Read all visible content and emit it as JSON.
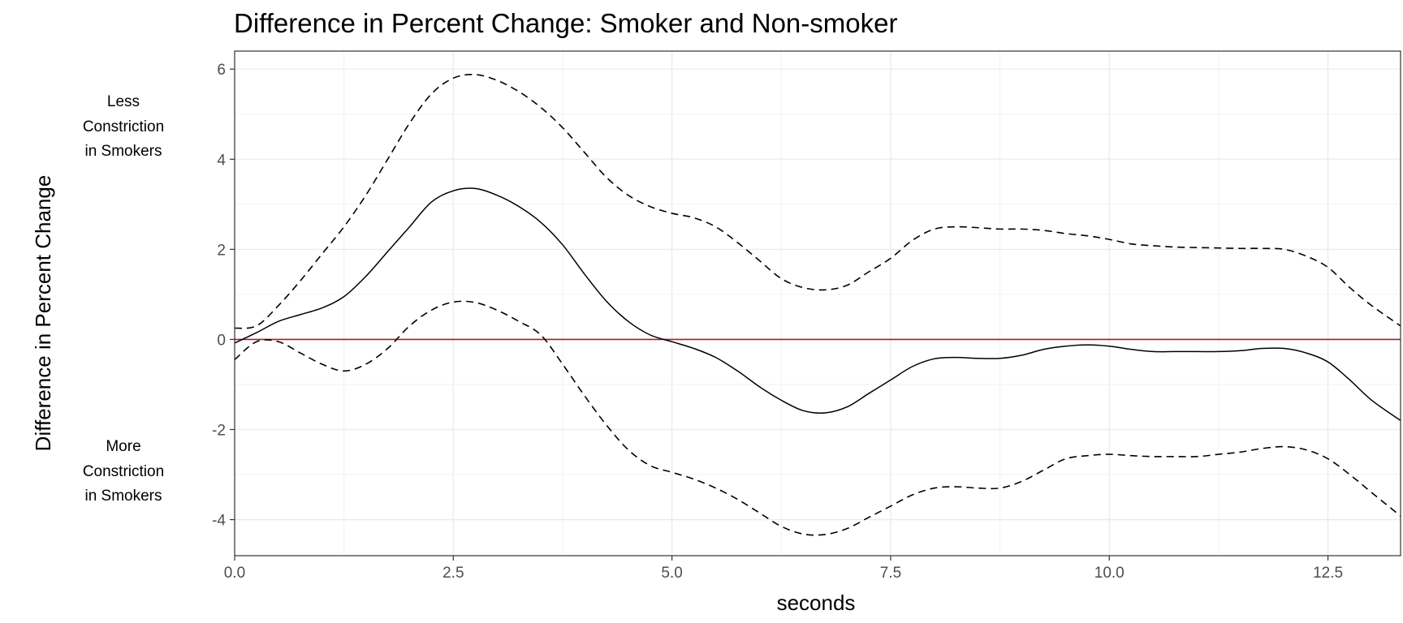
{
  "chart_data": {
    "type": "line",
    "title": "Difference in Percent Change: Smoker and Non-smoker",
    "xlabel": "seconds",
    "ylabel": "Difference in Percent Change",
    "xlim": [
      0,
      13.33
    ],
    "ylim": [
      -4.8,
      6.4
    ],
    "xticks": [
      0,
      2.5,
      5,
      7.5,
      10,
      12.5
    ],
    "xtick_labels": [
      "0.0",
      "2.5",
      "5.0",
      "7.5",
      "10.0",
      "12.5"
    ],
    "yticks": [
      -4,
      -2,
      0,
      2,
      4,
      6
    ],
    "ytick_labels": [
      "-4",
      "-2",
      "0",
      "2",
      "4",
      "6"
    ],
    "grid": true,
    "annotations": {
      "upper": [
        "Less",
        "Constriction",
        "in Smokers"
      ],
      "lower": [
        "More",
        "Constriction",
        "in Smokers"
      ]
    },
    "reference_line": {
      "y": 0,
      "color": "#b2182b"
    },
    "x": [
      0,
      0.25,
      0.5,
      0.75,
      1.0,
      1.25,
      1.5,
      1.75,
      2.0,
      2.25,
      2.5,
      2.75,
      3.0,
      3.25,
      3.5,
      3.75,
      4.0,
      4.25,
      4.5,
      4.75,
      5.0,
      5.25,
      5.5,
      5.75,
      6.0,
      6.25,
      6.5,
      6.75,
      7.0,
      7.25,
      7.5,
      7.75,
      8.0,
      8.25,
      8.5,
      8.75,
      9.0,
      9.25,
      9.5,
      9.75,
      10.0,
      10.25,
      10.5,
      10.75,
      11.0,
      11.25,
      11.5,
      11.75,
      12.0,
      12.25,
      12.5,
      12.75,
      13.0,
      13.33
    ],
    "series": [
      {
        "style": "solid",
        "color": "#000000",
        "values": [
          -0.08,
          0.15,
          0.4,
          0.55,
          0.7,
          0.95,
          1.4,
          1.95,
          2.5,
          3.05,
          3.3,
          3.35,
          3.2,
          2.95,
          2.6,
          2.1,
          1.45,
          0.85,
          0.4,
          0.1,
          -0.05,
          -0.2,
          -0.4,
          -0.7,
          -1.05,
          -1.35,
          -1.58,
          -1.63,
          -1.5,
          -1.2,
          -0.9,
          -0.6,
          -0.43,
          -0.4,
          -0.42,
          -0.42,
          -0.35,
          -0.22,
          -0.15,
          -0.12,
          -0.15,
          -0.22,
          -0.27,
          -0.27,
          -0.27,
          -0.27,
          -0.25,
          -0.2,
          -0.2,
          -0.3,
          -0.5,
          -0.9,
          -1.35,
          -1.8
        ]
      },
      {
        "style": "dashed",
        "color": "#000000",
        "values": [
          0.25,
          0.3,
          0.75,
          1.3,
          1.9,
          2.5,
          3.2,
          4.0,
          4.8,
          5.45,
          5.8,
          5.88,
          5.75,
          5.5,
          5.15,
          4.7,
          4.15,
          3.6,
          3.2,
          2.95,
          2.8,
          2.7,
          2.5,
          2.15,
          1.75,
          1.35,
          1.15,
          1.1,
          1.2,
          1.5,
          1.8,
          2.2,
          2.45,
          2.5,
          2.48,
          2.45,
          2.45,
          2.42,
          2.35,
          2.3,
          2.22,
          2.12,
          2.08,
          2.05,
          2.04,
          2.03,
          2.02,
          2.02,
          2.0,
          1.85,
          1.6,
          1.15,
          0.75,
          0.3
        ]
      },
      {
        "style": "dashed",
        "color": "#000000",
        "values": [
          -0.45,
          -0.05,
          -0.05,
          -0.3,
          -0.55,
          -0.7,
          -0.55,
          -0.2,
          0.3,
          0.65,
          0.83,
          0.82,
          0.65,
          0.4,
          0.1,
          -0.55,
          -1.25,
          -1.9,
          -2.45,
          -2.8,
          -2.95,
          -3.1,
          -3.3,
          -3.55,
          -3.85,
          -4.15,
          -4.32,
          -4.33,
          -4.2,
          -3.95,
          -3.7,
          -3.45,
          -3.3,
          -3.27,
          -3.3,
          -3.3,
          -3.15,
          -2.9,
          -2.65,
          -2.58,
          -2.55,
          -2.58,
          -2.6,
          -2.6,
          -2.6,
          -2.55,
          -2.5,
          -2.42,
          -2.38,
          -2.45,
          -2.65,
          -3.0,
          -3.4,
          -3.92
        ]
      }
    ]
  }
}
